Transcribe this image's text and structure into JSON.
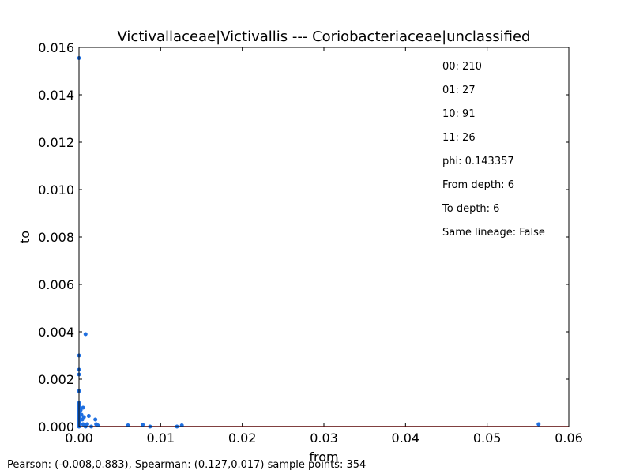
{
  "chart_data": {
    "type": "scatter",
    "title": "Victivallaceae|Victivallis --- Coriobacteriaceae|unclassified",
    "xlabel": "from",
    "ylabel": "to",
    "xlim": [
      0,
      0.06
    ],
    "ylim": [
      0,
      0.016
    ],
    "xticks": [
      "0.00",
      "0.01",
      "0.02",
      "0.03",
      "0.04",
      "0.05",
      "0.06"
    ],
    "yticks": [
      "0.000",
      "0.002",
      "0.004",
      "0.006",
      "0.008",
      "0.010",
      "0.012",
      "0.014",
      "0.016"
    ],
    "grid": false,
    "point_color": "#1f6fe0",
    "fit_line_color": "#ff0000",
    "fit_line": {
      "x": [
        0,
        0.06
      ],
      "y": [
        0,
        0
      ]
    },
    "points": [
      [
        0.0,
        0.01555
      ],
      [
        0.0,
        0.003
      ],
      [
        0.0,
        0.0024
      ],
      [
        0.0,
        0.0022
      ],
      [
        0.0,
        0.0015
      ],
      [
        0.0,
        0.001
      ],
      [
        0.0,
        0.0009
      ],
      [
        0.0,
        0.0008
      ],
      [
        0.0,
        0.0007
      ],
      [
        0.0,
        0.0006
      ],
      [
        0.0,
        0.0005
      ],
      [
        0.0,
        0.0004
      ],
      [
        0.0,
        0.0003
      ],
      [
        0.0,
        0.0002
      ],
      [
        0.0,
        0.0001
      ],
      [
        0.0,
        0.0
      ],
      [
        0.0002,
        0.0007
      ],
      [
        0.0003,
        0.0005
      ],
      [
        0.0004,
        0.0003
      ],
      [
        0.0005,
        0.0008
      ],
      [
        0.0005,
        0.0001
      ],
      [
        0.0006,
        0.0004
      ],
      [
        0.0008,
        0.0039
      ],
      [
        0.0008,
        0.0
      ],
      [
        0.001,
        0.0001
      ],
      [
        0.0012,
        0.00045
      ],
      [
        0.0015,
        0.0
      ],
      [
        0.002,
        0.0003
      ],
      [
        0.0021,
        0.0001
      ],
      [
        0.0023,
        5e-05
      ],
      [
        0.006,
        5e-05
      ],
      [
        0.0078,
        8e-05
      ],
      [
        0.0087,
        0.0
      ],
      [
        0.012,
        0.0
      ],
      [
        0.0126,
        5e-05
      ],
      [
        0.0563,
        0.0001
      ]
    ],
    "annotations": [
      "00: 210",
      "01: 27",
      "10: 91",
      "11: 26",
      "phi: 0.143357",
      "From depth: 6",
      "To depth: 6",
      "Same lineage: False"
    ]
  },
  "footer": "Pearson: (-0.008,0.883), Spearman: (0.127,0.017) sample points: 354"
}
